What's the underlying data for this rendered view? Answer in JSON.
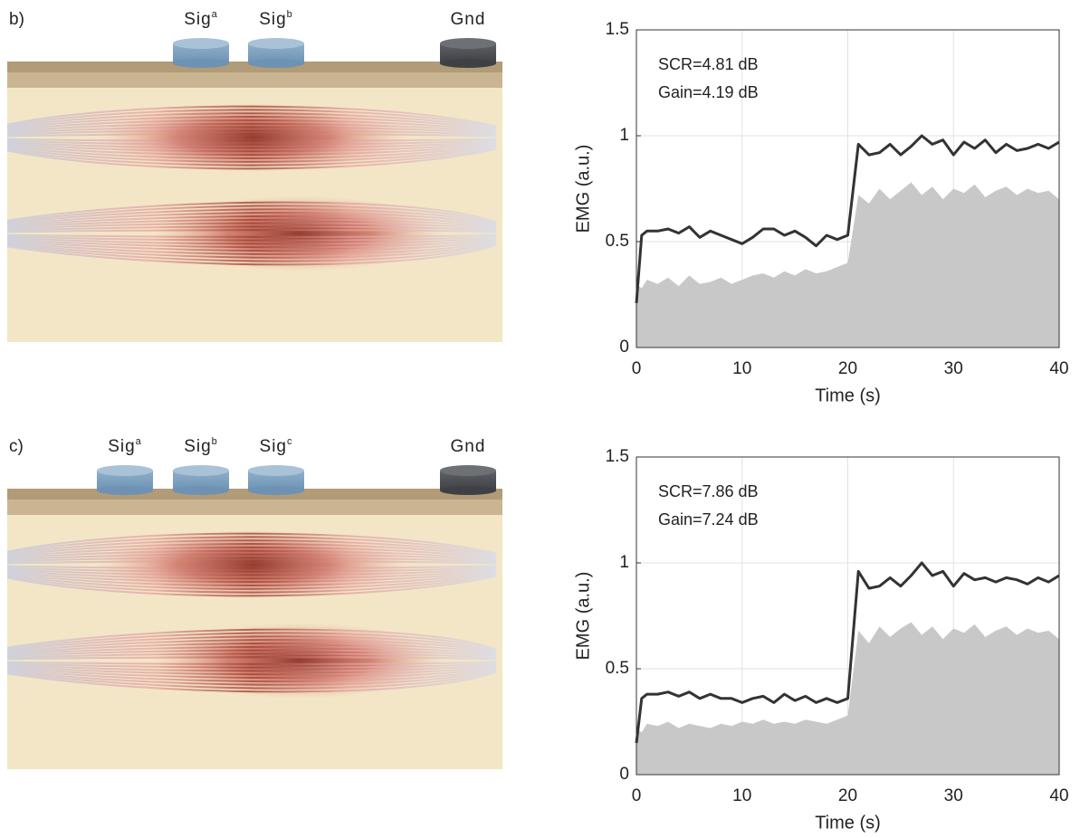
{
  "diagrams": [
    {
      "label": "b)",
      "electrodes": [
        {
          "text": "Sig",
          "sup": "a"
        },
        {
          "text": "Sig",
          "sup": "b"
        }
      ],
      "ground": "Gnd"
    },
    {
      "label": "c)",
      "electrodes": [
        {
          "text": "Sig",
          "sup": "a"
        },
        {
          "text": "Sig",
          "sup": "b"
        },
        {
          "text": "Sig",
          "sup": "c"
        }
      ],
      "ground": "Gnd"
    }
  ],
  "chart_data": [
    {
      "type": "line",
      "xlabel": "Time (s)",
      "ylabel": "EMG (a.u.)",
      "annotations": [
        "SCR=4.81 dB",
        "Gain=4.19 dB"
      ],
      "x": [
        0,
        0.5,
        1,
        2,
        3,
        4,
        5,
        6,
        7,
        8,
        9,
        10,
        11,
        12,
        13,
        14,
        15,
        16,
        17,
        18,
        19,
        20,
        21,
        22,
        23,
        24,
        25,
        26,
        27,
        28,
        29,
        30,
        31,
        32,
        33,
        34,
        35,
        36,
        37,
        38,
        39,
        40
      ],
      "series": [
        {
          "color": "#c8c8c8",
          "fill": true,
          "values": [
            0.3,
            0.28,
            0.32,
            0.3,
            0.33,
            0.29,
            0.34,
            0.3,
            0.31,
            0.33,
            0.3,
            0.32,
            0.34,
            0.35,
            0.33,
            0.36,
            0.34,
            0.37,
            0.35,
            0.36,
            0.38,
            0.4,
            0.72,
            0.68,
            0.75,
            0.7,
            0.74,
            0.78,
            0.72,
            0.76,
            0.7,
            0.75,
            0.73,
            0.77,
            0.71,
            0.74,
            0.76,
            0.72,
            0.75,
            0.73,
            0.74,
            0.7
          ]
        },
        {
          "color": "#333333",
          "values": [
            0.21,
            0.53,
            0.55,
            0.55,
            0.56,
            0.54,
            0.57,
            0.52,
            0.55,
            0.53,
            0.51,
            0.49,
            0.52,
            0.56,
            0.56,
            0.53,
            0.55,
            0.52,
            0.48,
            0.53,
            0.51,
            0.53,
            0.96,
            0.91,
            0.92,
            0.96,
            0.91,
            0.95,
            1.0,
            0.96,
            0.98,
            0.91,
            0.97,
            0.94,
            0.98,
            0.92,
            0.96,
            0.93,
            0.94,
            0.96,
            0.94,
            0.97
          ]
        }
      ],
      "xlim": [
        0,
        40
      ],
      "xticks": [
        0,
        10,
        20,
        30,
        40
      ],
      "ylim": [
        0,
        1.5
      ],
      "yticks": [
        0,
        0.5,
        1,
        1.5
      ],
      "grid": true
    },
    {
      "type": "line",
      "xlabel": "Time (s)",
      "ylabel": "EMG (a.u.)",
      "annotations": [
        "SCR=7.86 dB",
        "Gain=7.24 dB"
      ],
      "x": [
        0,
        0.5,
        1,
        2,
        3,
        4,
        5,
        6,
        7,
        8,
        9,
        10,
        11,
        12,
        13,
        14,
        15,
        16,
        17,
        18,
        19,
        20,
        21,
        22,
        23,
        24,
        25,
        26,
        27,
        28,
        29,
        30,
        31,
        32,
        33,
        34,
        35,
        36,
        37,
        38,
        39,
        40
      ],
      "series": [
        {
          "color": "#c8c8c8",
          "fill": true,
          "values": [
            0.22,
            0.2,
            0.24,
            0.23,
            0.25,
            0.22,
            0.24,
            0.23,
            0.22,
            0.24,
            0.23,
            0.25,
            0.24,
            0.26,
            0.24,
            0.25,
            0.24,
            0.26,
            0.25,
            0.24,
            0.26,
            0.28,
            0.68,
            0.62,
            0.7,
            0.65,
            0.69,
            0.72,
            0.66,
            0.7,
            0.64,
            0.69,
            0.67,
            0.71,
            0.65,
            0.68,
            0.7,
            0.66,
            0.69,
            0.67,
            0.68,
            0.64
          ]
        },
        {
          "color": "#333333",
          "values": [
            0.15,
            0.36,
            0.38,
            0.38,
            0.39,
            0.37,
            0.39,
            0.36,
            0.38,
            0.36,
            0.36,
            0.34,
            0.36,
            0.37,
            0.34,
            0.38,
            0.35,
            0.37,
            0.34,
            0.36,
            0.34,
            0.36,
            0.96,
            0.88,
            0.89,
            0.93,
            0.89,
            0.94,
            1.0,
            0.94,
            0.96,
            0.89,
            0.95,
            0.92,
            0.93,
            0.91,
            0.93,
            0.92,
            0.9,
            0.93,
            0.91,
            0.94
          ]
        }
      ],
      "xlim": [
        0,
        40
      ],
      "xticks": [
        0,
        10,
        20,
        30,
        40
      ],
      "ylim": [
        0,
        1.5
      ],
      "yticks": [
        0,
        0.5,
        1,
        1.5
      ],
      "grid": true
    }
  ]
}
